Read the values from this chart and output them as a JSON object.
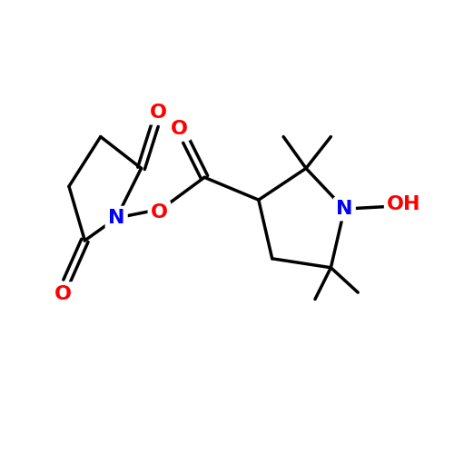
{
  "bg_color": "#ffffff",
  "bond_color": "#000000",
  "N_color": "#0000ff",
  "O_color": "#ff0000",
  "line_width": 2.5,
  "font_size_atoms": 16,
  "fig_size": [
    5.0,
    5.0
  ],
  "dpi": 100,
  "xlim": [
    0,
    10
  ],
  "ylim": [
    0,
    10
  ]
}
